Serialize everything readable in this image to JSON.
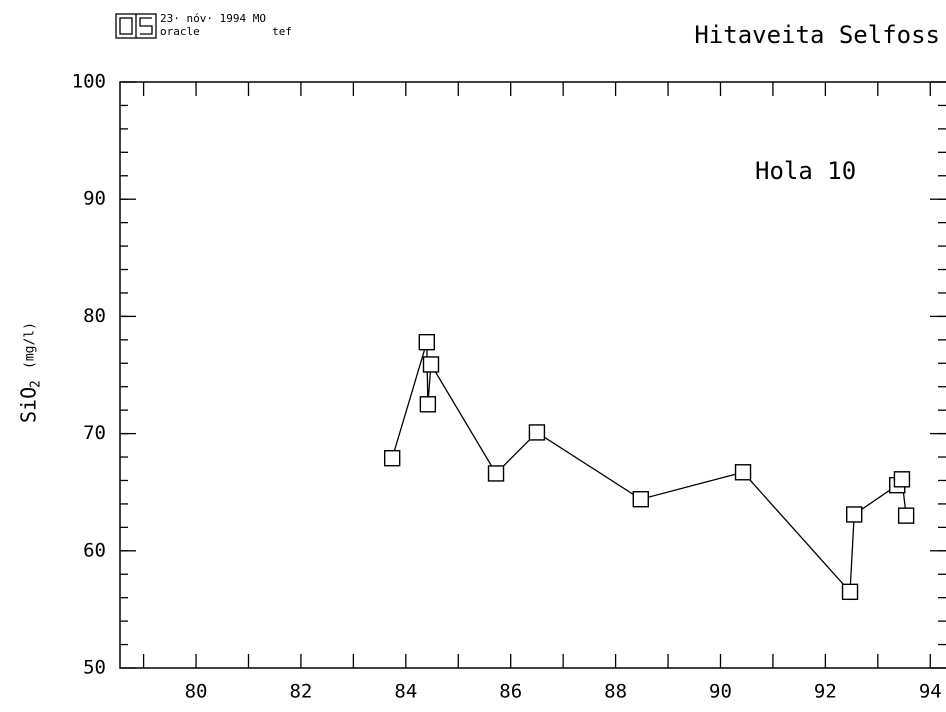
{
  "header": {
    "date": "23· nóv· 1994 MO",
    "system": "oracle",
    "user": "tef"
  },
  "chart_data": {
    "type": "line",
    "title": "Hitaveita Selfoss",
    "annotation": "Hola 10",
    "ylabel": {
      "main": "SiO",
      "sub": "2",
      "unit": "(mg/l)"
    },
    "color": "#000000",
    "x": [
      83.74,
      84.4,
      84.42,
      84.48,
      85.72,
      86.5,
      88.48,
      90.43,
      92.47,
      92.55,
      93.37,
      93.46,
      93.54
    ],
    "values": [
      67.9,
      77.8,
      72.5,
      75.9,
      66.6,
      70.1,
      64.4,
      66.7,
      56.5,
      63.1,
      65.6,
      66.1,
      63.0
    ],
    "xlim": [
      78.55,
      94.3
    ],
    "ylim": [
      50,
      100
    ],
    "xticks": [
      80,
      82,
      84,
      86,
      88,
      90,
      92,
      94
    ],
    "xminorticks": [
      79,
      80,
      81,
      82,
      83,
      84,
      85,
      86,
      87,
      88,
      89,
      90,
      91,
      92,
      93,
      94
    ],
    "yticks": [
      50,
      60,
      70,
      80,
      90,
      100
    ],
    "yminorticks": [
      52,
      54,
      56,
      58,
      60,
      62,
      64,
      66,
      68,
      70,
      72,
      74,
      76,
      78,
      80,
      82,
      84,
      86,
      88,
      90,
      92,
      94,
      96,
      98
    ]
  }
}
